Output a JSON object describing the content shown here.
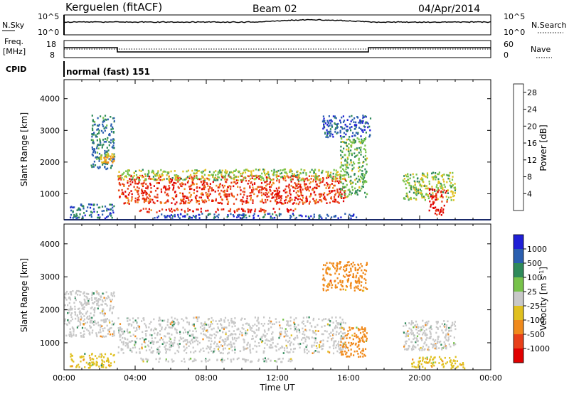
{
  "header": {
    "radar": "Kerguelen (fitACF)",
    "beam": "Beam 02",
    "date": "04/Apr/2014"
  },
  "strip_nsky": {
    "left_label": "N.Sky",
    "left_ticks": [
      "10^5",
      "10^0"
    ],
    "right_label": "N.Search",
    "right_ticks": [
      "10^5",
      "10^0"
    ]
  },
  "strip_freq": {
    "left_label_1": "Freq.",
    "left_label_2": "[MHz]",
    "left_ticks": [
      "18",
      "8"
    ],
    "right_label": "Nave",
    "right_ticks": [
      "60",
      "0"
    ]
  },
  "cpid": {
    "label": "CPID",
    "value": "normal (fast) 151"
  },
  "time_axis": {
    "title": "Time UT",
    "ticks": [
      "00:00",
      "04:00",
      "08:00",
      "12:00",
      "16:00",
      "20:00",
      "00:00"
    ]
  },
  "chart_data": [
    {
      "type": "heatmap",
      "title": "Power",
      "xlabel": "Time UT",
      "ylabel": "Slant Range [km]",
      "x_ticks": [
        "00:00",
        "04:00",
        "08:00",
        "12:00",
        "16:00",
        "20:00",
        "00:00"
      ],
      "xlim_hours": [
        0,
        24
      ],
      "y_ticks": [
        1000,
        2000,
        3000,
        4000
      ],
      "ylim_km": [
        180,
        4600
      ],
      "colorbar": {
        "label": "Power [dB]",
        "ticks": [
          4,
          8,
          12,
          16,
          20,
          24,
          28
        ],
        "range": [
          0,
          30
        ],
        "colors": [
          "#1f1fd6",
          "#2b5fb0",
          "#2f8a5a",
          "#77c24a",
          "#e0c020",
          "#f08a1c",
          "#e8401a",
          "#e00000"
        ]
      },
      "regions": [
        {
          "t": [
            3.0,
            15.8
          ],
          "r": [
            700,
            1600
          ],
          "v": 25
        },
        {
          "t": [
            3.0,
            15.8
          ],
          "r": [
            1450,
            1800
          ],
          "v": 14
        },
        {
          "t": [
            4.2,
            13.0
          ],
          "r": [
            440,
            560
          ],
          "v": 26
        },
        {
          "t": [
            15.5,
            17.0
          ],
          "r": [
            900,
            2800
          ],
          "v": 12
        },
        {
          "t": [
            14.5,
            17.2
          ],
          "r": [
            2800,
            3500
          ],
          "v": 5
        },
        {
          "t": [
            1.5,
            2.8
          ],
          "r": [
            1800,
            3500
          ],
          "v": 8
        },
        {
          "t": [
            2.0,
            2.8
          ],
          "r": [
            2000,
            2300
          ],
          "v": 18
        },
        {
          "t": [
            0.3,
            2.8
          ],
          "r": [
            250,
            700
          ],
          "v": 6
        },
        {
          "t": [
            19.0,
            22.0
          ],
          "r": [
            800,
            1700
          ],
          "v": 14
        },
        {
          "t": [
            20.5,
            21.5
          ],
          "r": [
            350,
            1200
          ],
          "v": 28
        },
        {
          "t": [
            5.0,
            16.5
          ],
          "r": [
            250,
            400
          ],
          "v": 5
        }
      ]
    },
    {
      "type": "heatmap",
      "title": "Velocity",
      "xlabel": "Time UT",
      "ylabel": "Slant Range [km]",
      "x_ticks": [
        "00:00",
        "04:00",
        "08:00",
        "12:00",
        "16:00",
        "20:00",
        "00:00"
      ],
      "xlim_hours": [
        0,
        24
      ],
      "y_ticks": [
        1000,
        2000,
        3000,
        4000
      ],
      "ylim_km": [
        180,
        4600
      ],
      "colorbar": {
        "label": "Velocity [m s^-1]",
        "ticks": [
          1000,
          500,
          100,
          25,
          -25,
          -100,
          -500,
          -1000
        ],
        "colors": [
          "#1f1fd6",
          "#2b5fb0",
          "#2f8a5a",
          "#77c24a",
          "#c8c8c8",
          "#e0c020",
          "#f08a1c",
          "#e8401a",
          "#e00000"
        ]
      },
      "regions": [
        {
          "t": [
            3.0,
            15.8
          ],
          "r": [
            700,
            1800
          ],
          "v": 0
        },
        {
          "t": [
            4.2,
            13.0
          ],
          "r": [
            440,
            560
          ],
          "v": 0
        },
        {
          "t": [
            0.0,
            2.8
          ],
          "r": [
            1200,
            2600
          ],
          "v": 0
        },
        {
          "t": [
            0.3,
            2.8
          ],
          "r": [
            250,
            700
          ],
          "v": -80
        },
        {
          "t": [
            15.5,
            17.0
          ],
          "r": [
            600,
            1500
          ],
          "v": -120
        },
        {
          "t": [
            14.5,
            17.0
          ],
          "r": [
            2600,
            3500
          ],
          "v": -300
        },
        {
          "t": [
            19.0,
            22.0
          ],
          "r": [
            800,
            1700
          ],
          "v": 0
        },
        {
          "t": [
            19.5,
            22.5
          ],
          "r": [
            250,
            600
          ],
          "v": -60
        }
      ]
    }
  ]
}
